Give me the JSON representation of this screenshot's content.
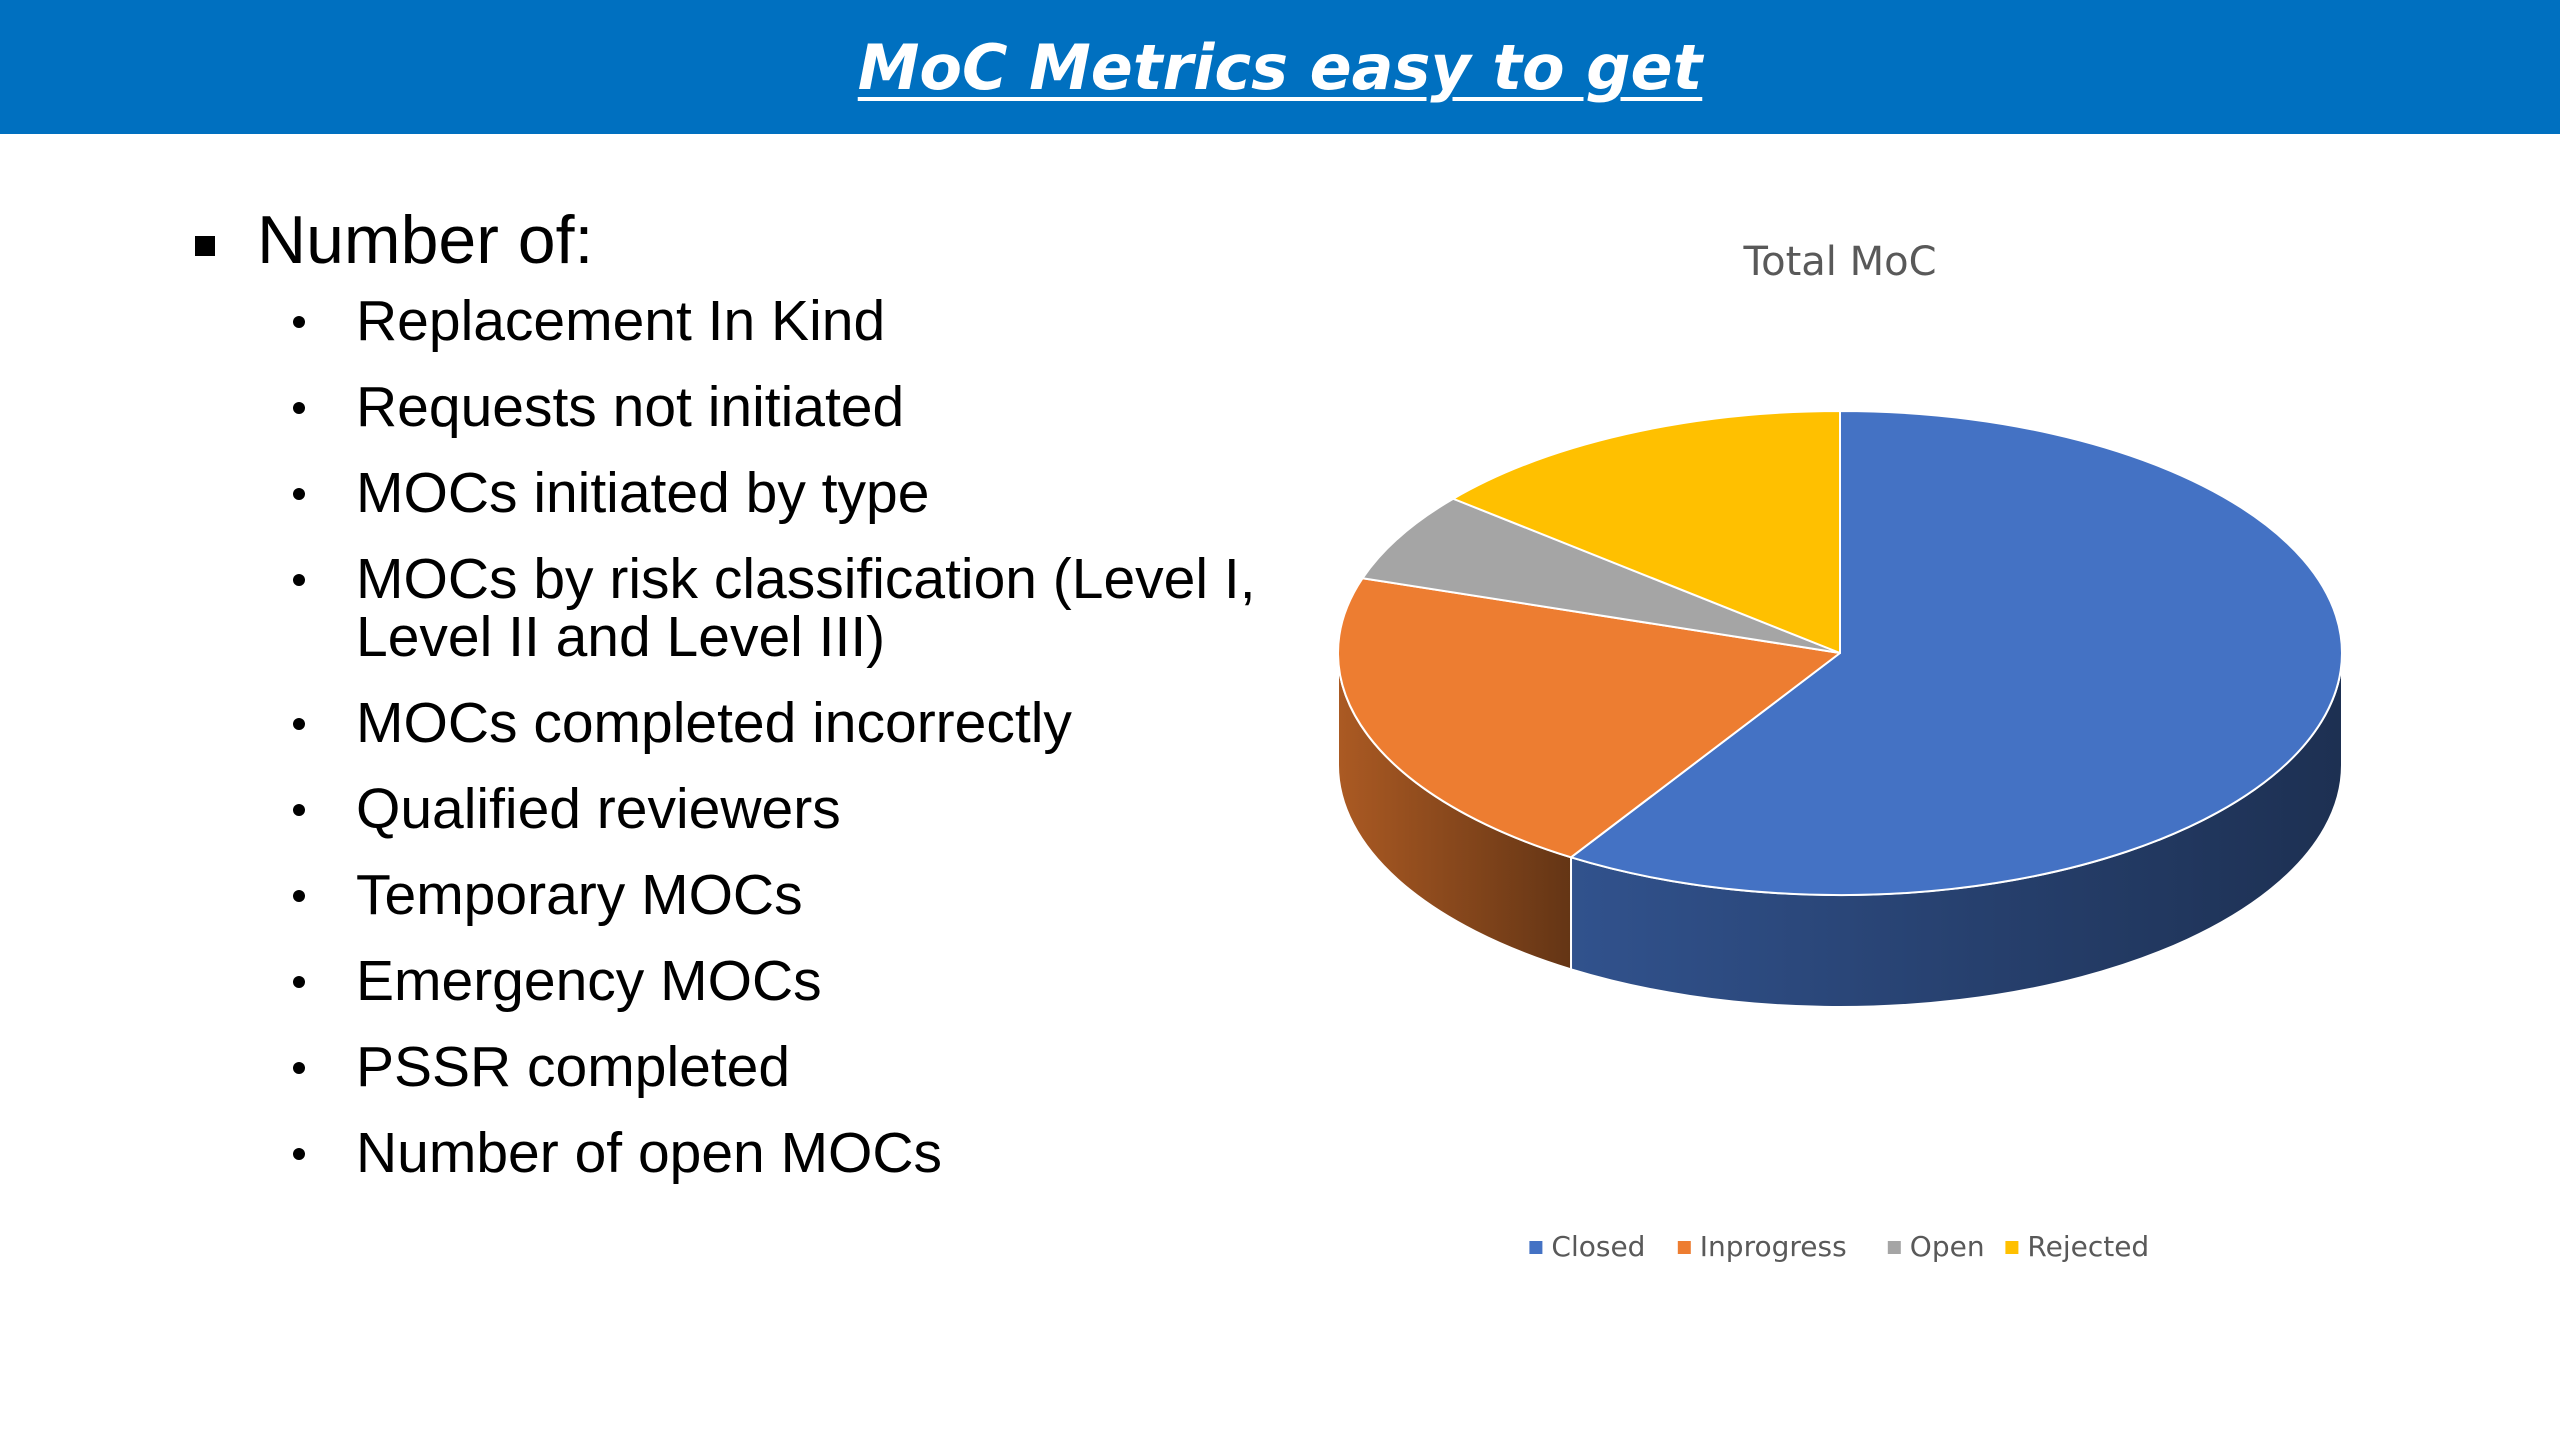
{
  "slide": {
    "title": "MoC Metrics easy to get",
    "main_bullet": "Number of:",
    "sub_bullets": [
      "Replacement In Kind",
      "Requests not initiated",
      "MOCs initiated by type",
      "MOCs by risk classification (Level I, Level II and Level III)",
      "MOCs completed incorrectly",
      "Qualified reviewers",
      "Temporary MOCs",
      "Emergency MOCs",
      "PSSR completed",
      "Number of open MOCs"
    ]
  },
  "colors": {
    "title_bar": "#0070C0",
    "title_text": "#FFFFFF",
    "chart_title": "#595959",
    "legend_text": "#595959"
  },
  "chart_data": {
    "type": "pie",
    "title": "Total MoC",
    "style": "3d",
    "legend": "bottom",
    "categories": [
      "Closed",
      "Inprogress",
      "Open",
      "Rejected"
    ],
    "values": [
      59,
      21,
      6,
      14
    ],
    "colors": [
      "#4472C4",
      "#ED7D31",
      "#A5A5A5",
      "#FFC000"
    ]
  }
}
